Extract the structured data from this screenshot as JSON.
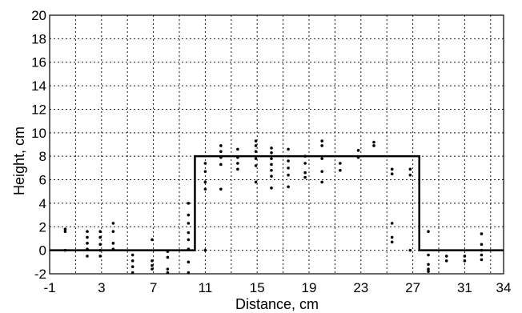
{
  "chart_data": {
    "type": "scatter",
    "xlabel": "Distance, cm",
    "ylabel": "Height, cm",
    "xlim": [
      -1,
      34
    ],
    "ylim": [
      -2,
      20
    ],
    "xticks": [
      -1,
      3,
      7,
      11,
      15,
      19,
      23,
      27,
      31,
      34
    ],
    "xtick_labels": [
      "-1",
      "3",
      "7",
      "11",
      "15",
      "19",
      "23",
      "27",
      "31",
      "34"
    ],
    "yticks": [
      -2,
      0,
      2,
      4,
      6,
      8,
      10,
      12,
      14,
      16,
      18,
      20
    ],
    "ytick_labels": [
      "-2",
      "0",
      "2",
      "4",
      "6",
      "8",
      "10",
      "12",
      "14",
      "16",
      "18",
      "20"
    ],
    "xgrid": [
      -1,
      1,
      3,
      5,
      7,
      9,
      11,
      13,
      15,
      17,
      19,
      21,
      23,
      25,
      27,
      29,
      31,
      33,
      34
    ],
    "grid": true,
    "series": [
      {
        "kind": "line",
        "color": "#000000",
        "x": [
          -1,
          10.2,
          10.2,
          27.5,
          27.5,
          34
        ],
        "y": [
          0,
          0,
          8,
          8,
          0,
          0
        ]
      },
      {
        "kind": "scatter",
        "color": "#000000",
        "points": [
          [
            0.2,
            1.8
          ],
          [
            0.2,
            1.6
          ],
          [
            0.2,
            0.0
          ],
          [
            1.9,
            1.6
          ],
          [
            1.9,
            1.1
          ],
          [
            1.9,
            0.6
          ],
          [
            1.9,
            0.1
          ],
          [
            1.9,
            -0.5
          ],
          [
            2.9,
            1.6
          ],
          [
            2.9,
            1.1
          ],
          [
            2.9,
            0.5
          ],
          [
            2.9,
            0.0
          ],
          [
            2.9,
            -0.5
          ],
          [
            3.9,
            2.3
          ],
          [
            3.9,
            1.6
          ],
          [
            3.9,
            0.6
          ],
          [
            3.9,
            0.1
          ],
          [
            5.4,
            -0.4
          ],
          [
            5.4,
            -0.9
          ],
          [
            5.4,
            -1.4
          ],
          [
            5.4,
            -1.9
          ],
          [
            6.9,
            0.9
          ],
          [
            6.9,
            -0.9
          ],
          [
            6.9,
            -1.3
          ],
          [
            6.9,
            -1.6
          ],
          [
            8.1,
            -0.1
          ],
          [
            8.1,
            -0.6
          ],
          [
            8.1,
            -1.6
          ],
          [
            8.1,
            -1.9
          ],
          [
            9.7,
            4.0
          ],
          [
            9.7,
            3.0
          ],
          [
            9.7,
            2.3
          ],
          [
            9.7,
            1.5
          ],
          [
            9.7,
            0.9
          ],
          [
            9.7,
            0.1
          ],
          [
            9.7,
            -1.0
          ],
          [
            9.7,
            -1.9
          ],
          [
            11.0,
            7.4
          ],
          [
            11.0,
            6.7
          ],
          [
            11.0,
            5.8
          ],
          [
            11.0,
            5.2
          ],
          [
            11.0,
            0.0
          ],
          [
            12.2,
            8.9
          ],
          [
            12.2,
            8.4
          ],
          [
            12.2,
            7.9
          ],
          [
            12.2,
            7.3
          ],
          [
            12.2,
            5.2
          ],
          [
            13.5,
            8.6
          ],
          [
            13.5,
            7.9
          ],
          [
            13.5,
            7.4
          ],
          [
            13.5,
            6.9
          ],
          [
            14.9,
            9.3
          ],
          [
            14.9,
            8.9
          ],
          [
            14.9,
            8.4
          ],
          [
            14.9,
            7.8
          ],
          [
            14.9,
            7.2
          ],
          [
            14.9,
            5.8
          ],
          [
            16.1,
            8.7
          ],
          [
            16.1,
            8.3
          ],
          [
            16.1,
            7.8
          ],
          [
            16.1,
            7.3
          ],
          [
            16.1,
            6.8
          ],
          [
            16.1,
            6.3
          ],
          [
            16.1,
            5.3
          ],
          [
            17.4,
            8.6
          ],
          [
            17.4,
            7.6
          ],
          [
            17.4,
            7.0
          ],
          [
            17.4,
            6.4
          ],
          [
            17.4,
            5.4
          ],
          [
            18.7,
            8.0
          ],
          [
            18.7,
            7.4
          ],
          [
            18.7,
            6.6
          ],
          [
            18.7,
            6.2
          ],
          [
            20.0,
            9.3
          ],
          [
            20.0,
            8.9
          ],
          [
            20.0,
            7.8
          ],
          [
            20.0,
            6.7
          ],
          [
            20.0,
            5.8
          ],
          [
            21.4,
            7.4
          ],
          [
            21.4,
            6.8
          ],
          [
            22.8,
            8.5
          ],
          [
            22.8,
            7.9
          ],
          [
            24.0,
            9.2
          ],
          [
            24.0,
            8.9
          ],
          [
            25.4,
            6.9
          ],
          [
            25.4,
            6.5
          ],
          [
            25.4,
            2.3
          ],
          [
            25.4,
            1.1
          ],
          [
            25.4,
            0.7
          ],
          [
            26.8,
            6.9
          ],
          [
            26.8,
            6.4
          ],
          [
            26.8,
            0.0
          ],
          [
            28.2,
            1.6
          ],
          [
            28.2,
            -0.4
          ],
          [
            28.2,
            -1.2
          ],
          [
            28.2,
            -1.6
          ],
          [
            28.2,
            -1.8
          ],
          [
            29.6,
            -0.5
          ],
          [
            29.6,
            -0.9
          ],
          [
            31.0,
            -0.5
          ],
          [
            31.0,
            -0.9
          ],
          [
            32.3,
            1.4
          ],
          [
            32.3,
            0.5
          ],
          [
            32.3,
            0.0
          ],
          [
            32.3,
            -0.4
          ],
          [
            32.3,
            -0.8
          ]
        ]
      }
    ]
  }
}
